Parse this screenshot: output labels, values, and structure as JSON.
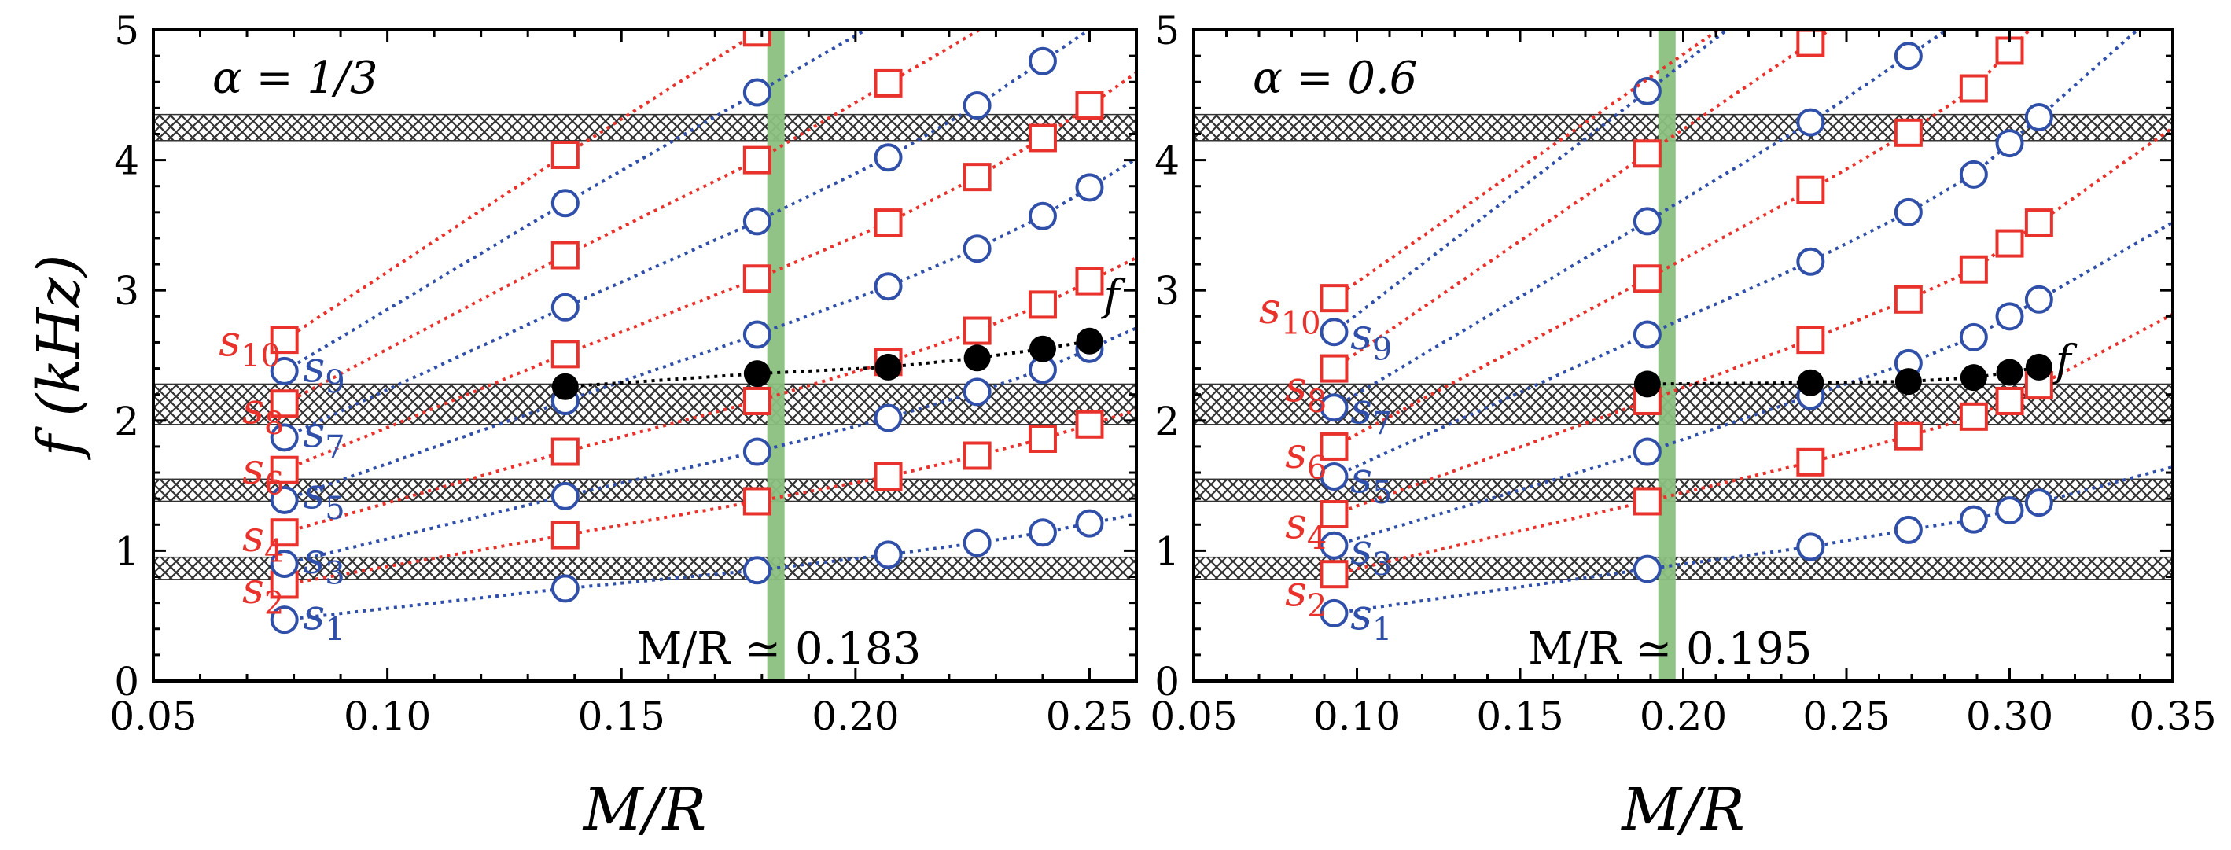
{
  "colors": {
    "red_series": "#e8322b",
    "blue_series": "#2f4fa8",
    "f_mode": "#000000",
    "vertical_band": "#8bbf7f",
    "hatch": "#333333"
  },
  "chart_data": [
    {
      "type": "line",
      "panel": "left",
      "annotation": "α = 1/3",
      "critical_label": "M/R ≃ 0.183",
      "critical_x": 0.183,
      "xlabel": "M/R",
      "ylabel": "f (kHz)",
      "xlim": [
        0.05,
        0.26
      ],
      "ylim": [
        0,
        5
      ],
      "xticks": [
        "0.05",
        "0.10",
        "0.15",
        "0.20",
        "0.25"
      ],
      "xtick_values": [
        0.05,
        0.1,
        0.15,
        0.2,
        0.25
      ],
      "yticks": [
        "0",
        "1",
        "2",
        "3",
        "4",
        "5"
      ],
      "hatched_bands_khz": [
        [
          0.78,
          0.95
        ],
        [
          1.38,
          1.55
        ],
        [
          1.97,
          2.28
        ],
        [
          4.15,
          4.35
        ]
      ],
      "series": [
        {
          "name": "s1",
          "color": "blue",
          "marker": "circle",
          "points": [
            [
              0.078,
              0.47
            ],
            [
              0.138,
              0.71
            ],
            [
              0.179,
              0.85
            ],
            [
              0.207,
              0.97
            ],
            [
              0.226,
              1.06
            ],
            [
              0.24,
              1.14
            ],
            [
              0.25,
              1.21
            ]
          ]
        },
        {
          "name": "s2",
          "color": "red",
          "marker": "square",
          "points": [
            [
              0.078,
              0.74
            ],
            [
              0.138,
              1.12
            ],
            [
              0.179,
              1.38
            ],
            [
              0.207,
              1.57
            ],
            [
              0.226,
              1.73
            ],
            [
              0.24,
              1.86
            ],
            [
              0.25,
              1.97
            ]
          ]
        },
        {
          "name": "s3",
          "color": "blue",
          "marker": "circle",
          "points": [
            [
              0.078,
              0.9
            ],
            [
              0.138,
              1.42
            ],
            [
              0.179,
              1.76
            ],
            [
              0.207,
              2.02
            ],
            [
              0.226,
              2.22
            ],
            [
              0.24,
              2.39
            ],
            [
              0.25,
              2.55
            ]
          ]
        },
        {
          "name": "s4",
          "color": "red",
          "marker": "square",
          "points": [
            [
              0.078,
              1.14
            ],
            [
              0.138,
              1.76
            ],
            [
              0.179,
              2.15
            ],
            [
              0.207,
              2.45
            ],
            [
              0.226,
              2.69
            ],
            [
              0.24,
              2.89
            ],
            [
              0.25,
              3.07
            ]
          ]
        },
        {
          "name": "s5",
          "color": "blue",
          "marker": "circle",
          "points": [
            [
              0.078,
              1.39
            ],
            [
              0.138,
              2.15
            ],
            [
              0.179,
              2.66
            ],
            [
              0.207,
              3.03
            ],
            [
              0.226,
              3.32
            ],
            [
              0.24,
              3.57
            ],
            [
              0.25,
              3.79
            ]
          ]
        },
        {
          "name": "s6",
          "color": "red",
          "marker": "square",
          "points": [
            [
              0.078,
              1.62
            ],
            [
              0.138,
              2.51
            ],
            [
              0.179,
              3.09
            ],
            [
              0.207,
              3.52
            ],
            [
              0.226,
              3.87
            ],
            [
              0.24,
              4.17
            ],
            [
              0.25,
              4.42
            ]
          ]
        },
        {
          "name": "s7",
          "color": "blue",
          "marker": "circle",
          "points": [
            [
              0.078,
              1.87
            ],
            [
              0.138,
              2.87
            ],
            [
              0.179,
              3.53
            ],
            [
              0.207,
              4.02
            ],
            [
              0.226,
              4.42
            ],
            [
              0.24,
              4.76
            ]
          ]
        },
        {
          "name": "s8",
          "color": "red",
          "marker": "square",
          "points": [
            [
              0.078,
              2.13
            ],
            [
              0.138,
              3.27
            ],
            [
              0.179,
              4.0
            ],
            [
              0.207,
              4.59
            ]
          ]
        },
        {
          "name": "s9",
          "color": "blue",
          "marker": "circle",
          "points": [
            [
              0.078,
              2.38
            ],
            [
              0.138,
              3.67
            ],
            [
              0.179,
              4.52
            ]
          ]
        },
        {
          "name": "s10",
          "color": "red",
          "marker": "square",
          "points": [
            [
              0.078,
              2.62
            ],
            [
              0.138,
              4.04
            ],
            [
              0.179,
              4.98
            ]
          ]
        },
        {
          "name": "f",
          "color": "black",
          "marker": "filled-circle",
          "points": [
            [
              0.138,
              2.26
            ],
            [
              0.179,
              2.36
            ],
            [
              0.207,
              2.41
            ],
            [
              0.226,
              2.48
            ],
            [
              0.24,
              2.55
            ],
            [
              0.25,
              2.61
            ]
          ]
        }
      ],
      "labels": [
        {
          "text": "s",
          "sub": "1",
          "color": "blue",
          "x": 0.082,
          "y": 0.4
        },
        {
          "text": "s",
          "sub": "2",
          "color": "red",
          "x": 0.069,
          "y": 0.6
        },
        {
          "text": "s",
          "sub": "3",
          "color": "blue",
          "x": 0.082,
          "y": 0.83
        },
        {
          "text": "s",
          "sub": "4",
          "color": "red",
          "x": 0.069,
          "y": 1.0
        },
        {
          "text": "s",
          "sub": "5",
          "color": "blue",
          "x": 0.082,
          "y": 1.33
        },
        {
          "text": "s",
          "sub": "6",
          "color": "red",
          "x": 0.069,
          "y": 1.52
        },
        {
          "text": "s",
          "sub": "7",
          "color": "blue",
          "x": 0.082,
          "y": 1.8
        },
        {
          "text": "s",
          "sub": "8",
          "color": "red",
          "x": 0.069,
          "y": 1.98
        },
        {
          "text": "s",
          "sub": "9",
          "color": "blue",
          "x": 0.082,
          "y": 2.3
        },
        {
          "text": "s",
          "sub": "10",
          "color": "red",
          "x": 0.064,
          "y": 2.5
        },
        {
          "text": "f",
          "sub": "",
          "color": "black",
          "x": 0.253,
          "y": 2.85
        }
      ]
    },
    {
      "type": "line",
      "panel": "right",
      "annotation": "α = 0.6",
      "critical_label": "M/R ≃ 0.195",
      "critical_x": 0.195,
      "xlabel": "M/R",
      "ylabel": "",
      "xlim": [
        0.05,
        0.35
      ],
      "ylim": [
        0,
        5
      ],
      "xticks": [
        "0.05",
        "0.10",
        "0.15",
        "0.20",
        "0.25",
        "0.30",
        "0.35"
      ],
      "xtick_values": [
        0.05,
        0.1,
        0.15,
        0.2,
        0.25,
        0.3,
        0.35
      ],
      "yticks": [
        "0",
        "1",
        "2",
        "3",
        "4",
        "5"
      ],
      "hatched_bands_khz": [
        [
          0.78,
          0.95
        ],
        [
          1.38,
          1.55
        ],
        [
          1.97,
          2.28
        ],
        [
          4.15,
          4.35
        ]
      ],
      "series": [
        {
          "name": "s1",
          "color": "blue",
          "marker": "circle",
          "points": [
            [
              0.093,
              0.52
            ],
            [
              0.189,
              0.86
            ],
            [
              0.239,
              1.03
            ],
            [
              0.269,
              1.16
            ],
            [
              0.289,
              1.24
            ],
            [
              0.3,
              1.31
            ],
            [
              0.309,
              1.37
            ]
          ]
        },
        {
          "name": "s2",
          "color": "red",
          "marker": "square",
          "points": [
            [
              0.093,
              0.82
            ],
            [
              0.189,
              1.38
            ],
            [
              0.239,
              1.68
            ],
            [
              0.269,
              1.88
            ],
            [
              0.289,
              2.03
            ],
            [
              0.3,
              2.15
            ],
            [
              0.309,
              2.27
            ]
          ]
        },
        {
          "name": "s3",
          "color": "blue",
          "marker": "circle",
          "points": [
            [
              0.093,
              1.04
            ],
            [
              0.189,
              1.76
            ],
            [
              0.239,
              2.19
            ],
            [
              0.269,
              2.44
            ],
            [
              0.289,
              2.64
            ],
            [
              0.3,
              2.8
            ],
            [
              0.309,
              2.93
            ]
          ]
        },
        {
          "name": "s4",
          "color": "red",
          "marker": "square",
          "points": [
            [
              0.093,
              1.28
            ],
            [
              0.189,
              2.15
            ],
            [
              0.239,
              2.62
            ],
            [
              0.269,
              2.93
            ],
            [
              0.289,
              3.16
            ],
            [
              0.3,
              3.36
            ],
            [
              0.309,
              3.52
            ]
          ]
        },
        {
          "name": "s5",
          "color": "blue",
          "marker": "circle",
          "points": [
            [
              0.093,
              1.57
            ],
            [
              0.189,
              2.66
            ],
            [
              0.239,
              3.22
            ],
            [
              0.269,
              3.6
            ],
            [
              0.289,
              3.89
            ],
            [
              0.3,
              4.13
            ],
            [
              0.309,
              4.33
            ]
          ]
        },
        {
          "name": "s6",
          "color": "red",
          "marker": "square",
          "points": [
            [
              0.093,
              1.8
            ],
            [
              0.189,
              3.09
            ],
            [
              0.239,
              3.77
            ],
            [
              0.269,
              4.21
            ],
            [
              0.289,
              4.55
            ],
            [
              0.3,
              4.84
            ]
          ]
        },
        {
          "name": "s7",
          "color": "blue",
          "marker": "circle",
          "points": [
            [
              0.093,
              2.1
            ],
            [
              0.189,
              3.53
            ],
            [
              0.239,
              4.29
            ],
            [
              0.269,
              4.8
            ]
          ]
        },
        {
          "name": "s8",
          "color": "red",
          "marker": "square",
          "points": [
            [
              0.093,
              2.4
            ],
            [
              0.189,
              4.05
            ],
            [
              0.239,
              4.9
            ]
          ]
        },
        {
          "name": "s9",
          "color": "blue",
          "marker": "circle",
          "points": [
            [
              0.093,
              2.68
            ],
            [
              0.189,
              4.53
            ]
          ]
        },
        {
          "name": "s10",
          "color": "red",
          "marker": "square",
          "points": [
            [
              0.093,
              2.94
            ]
          ]
        },
        {
          "name": "f",
          "color": "black",
          "marker": "filled-circle",
          "points": [
            [
              0.189,
              2.28
            ],
            [
              0.239,
              2.29
            ],
            [
              0.269,
              2.3
            ],
            [
              0.289,
              2.33
            ],
            [
              0.3,
              2.37
            ],
            [
              0.309,
              2.41
            ]
          ]
        }
      ],
      "labels": [
        {
          "text": "s",
          "sub": "1",
          "color": "blue",
          "x": 0.098,
          "y": 0.4
        },
        {
          "text": "s",
          "sub": "2",
          "color": "red",
          "x": 0.078,
          "y": 0.58
        },
        {
          "text": "s",
          "sub": "3",
          "color": "blue",
          "x": 0.098,
          "y": 0.9
        },
        {
          "text": "s",
          "sub": "4",
          "color": "red",
          "x": 0.078,
          "y": 1.1
        },
        {
          "text": "s",
          "sub": "5",
          "color": "blue",
          "x": 0.098,
          "y": 1.45
        },
        {
          "text": "s",
          "sub": "6",
          "color": "red",
          "x": 0.078,
          "y": 1.64
        },
        {
          "text": "s",
          "sub": "7",
          "color": "blue",
          "x": 0.098,
          "y": 1.98
        },
        {
          "text": "s",
          "sub": "8",
          "color": "red",
          "x": 0.078,
          "y": 2.15
        },
        {
          "text": "s",
          "sub": "9",
          "color": "blue",
          "x": 0.098,
          "y": 2.55
        },
        {
          "text": "s",
          "sub": "10",
          "color": "red",
          "x": 0.07,
          "y": 2.75
        },
        {
          "text": "f",
          "sub": "",
          "color": "black",
          "x": 0.314,
          "y": 2.35
        }
      ]
    }
  ]
}
